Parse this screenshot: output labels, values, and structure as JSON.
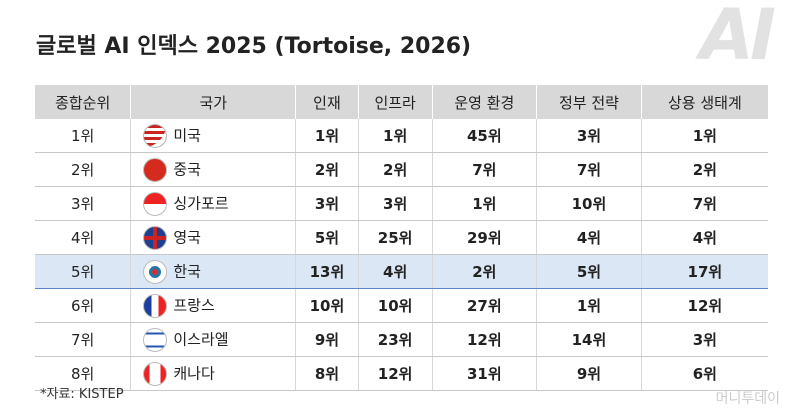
{
  "title": "글로벌 AI 인덱스 2025 (Tortoise, 2026)",
  "logo": "AI",
  "table": {
    "header": [
      "종합순위",
      "국가",
      "인재",
      "인프라",
      "운영 환경",
      "정부 전략",
      "상용 생태계"
    ],
    "rows": [
      [
        "1위",
        "미국",
        "1위",
        "1위",
        "45위",
        "3위",
        "1위"
      ],
      [
        "2위",
        "중국",
        "2위",
        "2위",
        "7위",
        "7위",
        "2위"
      ],
      [
        "3위",
        "싱가포르",
        "3위",
        "3위",
        "1위",
        "10위",
        "7위"
      ],
      [
        "4위",
        "영국",
        "5위",
        "25위",
        "29위",
        "4위",
        "4위"
      ],
      [
        "5위",
        "한국",
        "13위",
        "4위",
        "2위",
        "5위",
        "17위"
      ],
      [
        "6위",
        "프랑스",
        "10위",
        "10위",
        "27위",
        "1위",
        "12위"
      ],
      [
        "7위",
        "이스라엘",
        "9위",
        "23위",
        "12위",
        "14위",
        "3위"
      ],
      [
        "8위",
        "캐나다",
        "8위",
        "12위",
        "31위",
        "9위",
        "6위"
      ]
    ]
  },
  "source": "*자료: KISTEP",
  "watermark": "머니투데이"
}
